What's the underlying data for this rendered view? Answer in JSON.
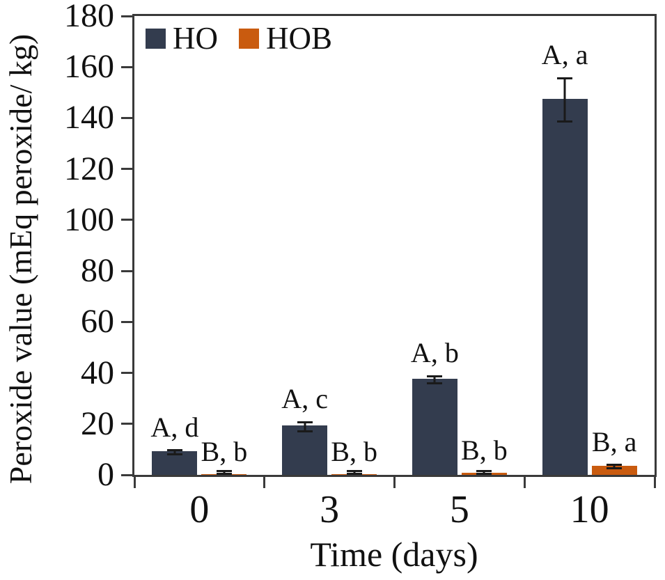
{
  "figure": {
    "background": "#ffffff",
    "axis_color": "#3a3a3a",
    "text_color": "#111111"
  },
  "chart_data": {
    "type": "bar",
    "title": "",
    "xlabel": "Time (days)",
    "ylabel": "Peroxide value (mEq peroxide/ kg)",
    "categories": [
      "0",
      "3",
      "5",
      "10"
    ],
    "ylim": [
      0,
      180
    ],
    "yticks": [
      "0",
      "20",
      "40",
      "60",
      "80",
      "100",
      "120",
      "140",
      "160",
      "180"
    ],
    "grid": false,
    "legend_position": "top-left-inside",
    "error_bars": true,
    "series": [
      {
        "name": "HO",
        "color": "#333C4E",
        "values": [
          9.2,
          19.3,
          37.8,
          147.5
        ],
        "errors": [
          1.2,
          2.2,
          1.8,
          9
        ],
        "sig_labels": [
          "A, d",
          "A, c",
          "A, b",
          "A, a"
        ]
      },
      {
        "name": "HOB",
        "color": "#C95B0F",
        "values": [
          0.3,
          0.3,
          0.9,
          3.6
        ],
        "errors": [
          0.4,
          0.4,
          0.6,
          1.1
        ],
        "sig_labels": [
          "B, b",
          "B, b",
          "B, b",
          "B, a"
        ]
      }
    ]
  }
}
